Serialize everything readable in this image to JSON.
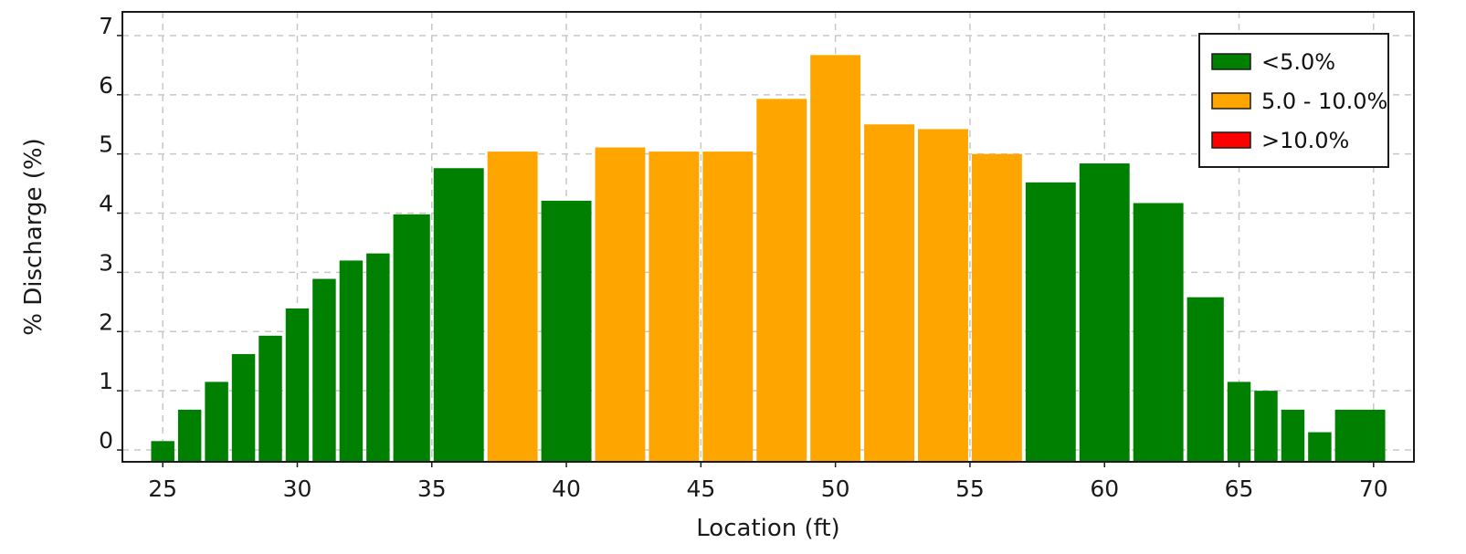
{
  "chart_data": {
    "type": "bar",
    "title": "",
    "xlabel": "Location (ft)",
    "ylabel": "% Discharge (%)",
    "xlim": [
      23.5,
      71.5
    ],
    "ylim": [
      -0.2,
      7.4
    ],
    "xticks": [
      "25",
      "30",
      "35",
      "40",
      "45",
      "50",
      "55",
      "60",
      "65",
      "70"
    ],
    "yticks": [
      "0",
      "1",
      "2",
      "3",
      "4",
      "5",
      "6",
      "7"
    ],
    "grid": true,
    "legend_position": "top-right",
    "colors": {
      "<5.0%": "#008000",
      "5.0 - 10.0%": "#ffa500",
      ">10.0%": "#ff0000"
    },
    "legend": [
      {
        "label": "<5.0%",
        "color": "#008000"
      },
      {
        "label": "5.0 - 10.0%",
        "color": "#ffa500"
      },
      {
        "label": ">10.0%",
        "color": "#ff0000"
      }
    ],
    "bars": [
      {
        "x0": 24.5,
        "x1": 25.5,
        "value": 0.15,
        "category": "<5.0%"
      },
      {
        "x0": 25.5,
        "x1": 26.5,
        "value": 0.68,
        "category": "<5.0%"
      },
      {
        "x0": 26.5,
        "x1": 27.5,
        "value": 1.15,
        "category": "<5.0%"
      },
      {
        "x0": 27.5,
        "x1": 28.5,
        "value": 1.62,
        "category": "<5.0%"
      },
      {
        "x0": 28.5,
        "x1": 29.5,
        "value": 1.93,
        "category": "<5.0%"
      },
      {
        "x0": 29.5,
        "x1": 30.5,
        "value": 2.39,
        "category": "<5.0%"
      },
      {
        "x0": 30.5,
        "x1": 31.5,
        "value": 2.89,
        "category": "<5.0%"
      },
      {
        "x0": 31.5,
        "x1": 32.5,
        "value": 3.2,
        "category": "<5.0%"
      },
      {
        "x0": 32.5,
        "x1": 33.5,
        "value": 3.32,
        "category": "<5.0%"
      },
      {
        "x0": 33.5,
        "x1": 35.0,
        "value": 3.98,
        "category": "<5.0%"
      },
      {
        "x0": 35.0,
        "x1": 37.0,
        "value": 4.76,
        "category": "<5.0%"
      },
      {
        "x0": 37.0,
        "x1": 39.0,
        "value": 5.04,
        "category": "5.0 - 10.0%"
      },
      {
        "x0": 39.0,
        "x1": 41.0,
        "value": 4.21,
        "category": "<5.0%"
      },
      {
        "x0": 41.0,
        "x1": 43.0,
        "value": 5.11,
        "category": "5.0 - 10.0%"
      },
      {
        "x0": 43.0,
        "x1": 45.0,
        "value": 5.04,
        "category": "5.0 - 10.0%"
      },
      {
        "x0": 45.0,
        "x1": 47.0,
        "value": 5.04,
        "category": "5.0 - 10.0%"
      },
      {
        "x0": 47.0,
        "x1": 49.0,
        "value": 5.93,
        "category": "5.0 - 10.0%"
      },
      {
        "x0": 49.0,
        "x1": 51.0,
        "value": 6.67,
        "category": "5.0 - 10.0%"
      },
      {
        "x0": 51.0,
        "x1": 53.0,
        "value": 5.5,
        "category": "5.0 - 10.0%"
      },
      {
        "x0": 53.0,
        "x1": 55.0,
        "value": 5.42,
        "category": "5.0 - 10.0%"
      },
      {
        "x0": 55.0,
        "x1": 57.0,
        "value": 5.0,
        "category": "5.0 - 10.0%"
      },
      {
        "x0": 57.0,
        "x1": 59.0,
        "value": 4.52,
        "category": "<5.0%"
      },
      {
        "x0": 59.0,
        "x1": 61.0,
        "value": 4.84,
        "category": "<5.0%"
      },
      {
        "x0": 61.0,
        "x1": 63.0,
        "value": 4.17,
        "category": "<5.0%"
      },
      {
        "x0": 63.0,
        "x1": 64.5,
        "value": 2.58,
        "category": "<5.0%"
      },
      {
        "x0": 64.5,
        "x1": 65.5,
        "value": 1.15,
        "category": "<5.0%"
      },
      {
        "x0": 65.5,
        "x1": 66.5,
        "value": 1.0,
        "category": "<5.0%"
      },
      {
        "x0": 66.5,
        "x1": 67.5,
        "value": 0.68,
        "category": "<5.0%"
      },
      {
        "x0": 67.5,
        "x1": 68.5,
        "value": 0.3,
        "category": "<5.0%"
      },
      {
        "x0": 68.5,
        "x1": 70.5,
        "value": 0.68,
        "category": "<5.0%"
      }
    ]
  }
}
